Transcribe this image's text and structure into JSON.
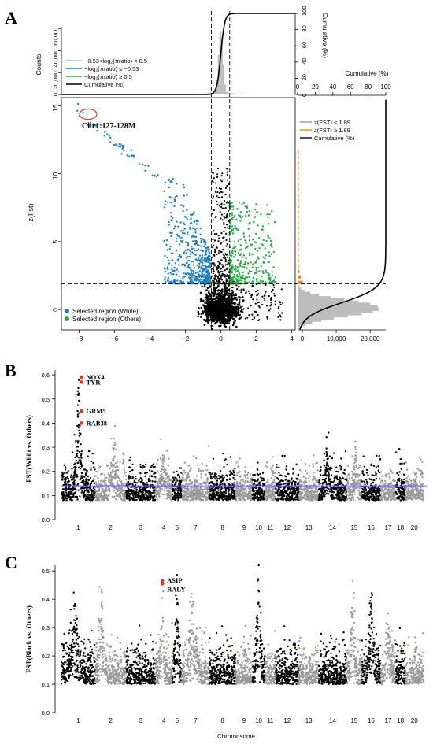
{
  "panel_labels": {
    "a": "A",
    "b": "B",
    "c": "C"
  },
  "colors": {
    "blue": "#1f7fbf",
    "green": "#27a844",
    "black": "#000000",
    "gray": "#9a9a9a",
    "orange": "#f08a1c",
    "hline": "#6666ff",
    "red": "#e8322a"
  },
  "chart_data": [
    {
      "id": "A-top",
      "type": "area",
      "ylabel": "Counts",
      "y2label": "Cumulative (%)",
      "yticks": [
        "0",
        "20,000",
        "40,000",
        "60,000"
      ],
      "y2ticks": [
        "0",
        "20",
        "40",
        "60",
        "80",
        "100"
      ],
      "legend": [
        {
          "label": "−0.53<log₂(πratio) < 0.5",
          "color": "#8fbbe0"
        },
        {
          "label": "−log₂(πratio) ≤ −0.53",
          "color": "#1f7fbf"
        },
        {
          "label": "−log₂(πratio) ≥ 0.5",
          "color": "#27a844"
        },
        {
          "label": "Cumulative (%)",
          "color": "#000000"
        }
      ],
      "thresholds_x": [
        -0.53,
        0.5
      ]
    },
    {
      "id": "A-main",
      "type": "scatter",
      "ylabel": "z(Fst)",
      "xticks": [
        "−8",
        "−6",
        "−4",
        "−2",
        "0",
        "2",
        "4"
      ],
      "yticks": [
        "0",
        "5",
        "10",
        "15"
      ],
      "xlim": [
        -9,
        4.2
      ],
      "ylim": [
        -1.5,
        15.6
      ],
      "threshold_y": 1.89,
      "annotation": "Chr1:127-128M",
      "legend": [
        {
          "label": "Selected region (White)",
          "color": "#1f7fbf"
        },
        {
          "label": "Selected region (Others)",
          "color": "#27a844"
        }
      ]
    },
    {
      "id": "A-right",
      "type": "area",
      "xlabel": "Cumulative (%)",
      "x2ticks": [
        "0",
        "20",
        "40",
        "60",
        "80",
        "100"
      ],
      "xticks": [
        "0",
        "10,000",
        "20,000"
      ],
      "legend": [
        {
          "label": "z(FST) < 1.89",
          "color": "#9a9a9a"
        },
        {
          "label": "z(FST) ≥ 1.89",
          "color": "#f08a1c"
        },
        {
          "label": "Cumulative (%)",
          "color": "#000000"
        }
      ]
    },
    {
      "id": "B",
      "type": "scatter",
      "ylabel": "FST(Whilt vs. Others)",
      "yticks": [
        "0.0",
        "0.1",
        "0.2",
        "0.3",
        "0.4",
        "0.5",
        "0.6"
      ],
      "ylim": [
        0,
        0.62
      ],
      "threshold_y": 0.14,
      "chromosomes": [
        "1",
        "2",
        "3",
        "4",
        "5",
        "7",
        "8",
        "9",
        "10",
        "11",
        "12",
        "13",
        "14",
        "15",
        "16",
        "17",
        "18",
        "20"
      ],
      "genes": [
        {
          "name": "NOX4",
          "fst": 0.59
        },
        {
          "name": "TYR",
          "fst": 0.57
        },
        {
          "name": "GRM5",
          "fst": 0.45
        },
        {
          "name": "RAB38",
          "fst": 0.4
        }
      ]
    },
    {
      "id": "C",
      "type": "scatter",
      "ylabel": "FST(Black vs. Others)",
      "xlabel": "Chromosome",
      "yticks": [
        "0.0",
        "0.1",
        "0.2",
        "0.3",
        "0.4",
        "0.5"
      ],
      "ylim": [
        0,
        0.52
      ],
      "threshold_y": 0.21,
      "chromosomes": [
        "1",
        "2",
        "3",
        "4",
        "5",
        "7",
        "8",
        "9",
        "10",
        "11",
        "12",
        "13",
        "14",
        "15",
        "16",
        "17",
        "18",
        "20"
      ],
      "genes": [
        {
          "name": "ASIP",
          "fst": 0.465
        },
        {
          "name": "RALY",
          "fst": 0.455
        }
      ]
    }
  ]
}
